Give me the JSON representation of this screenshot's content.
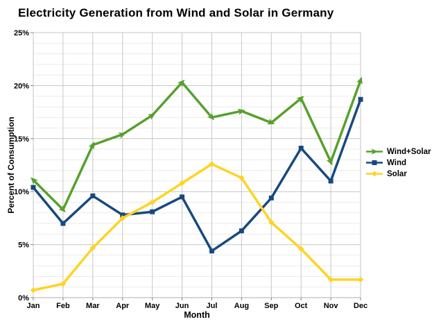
{
  "page": {
    "background": "#FFFFFF"
  },
  "chart_data": {
    "type": "line",
    "title": "Electricity Generation from Wind and Solar in Germany",
    "xlabel": "Month",
    "ylabel": "Percent of Consumption",
    "categories": [
      "Jan",
      "Feb",
      "Mar",
      "Apr",
      "May",
      "Jun",
      "Jul",
      "Aug",
      "Sep",
      "Oct",
      "Nov",
      "Dec"
    ],
    "ylim": [
      0,
      25
    ],
    "ytick_major_values": [
      0,
      5,
      10,
      15,
      20,
      25
    ],
    "ytick_labels": [
      "0%",
      "5%",
      "10%",
      "15%",
      "20%",
      "25%"
    ],
    "minor_grid_step_percent": 1,
    "grid": true,
    "legend_position": "right",
    "colors": {
      "grid_minor": "#EBEBEB",
      "grid_major": "#C6C6C6",
      "axis_line": "#ADADAD",
      "tick": "#808080",
      "text": "#000000",
      "background": "#FFFFFF"
    },
    "series": [
      {
        "name": "Wind+Solar",
        "color": "#57A02C",
        "marker": "arrow",
        "values": [
          11.1,
          8.3,
          14.4,
          15.4,
          17.2,
          20.3,
          17.0,
          17.6,
          16.5,
          18.8,
          12.8,
          20.5
        ]
      },
      {
        "name": "Wind",
        "color": "#17497F",
        "marker": "square",
        "values": [
          10.4,
          7.0,
          9.6,
          7.8,
          8.1,
          9.5,
          4.4,
          6.3,
          9.4,
          14.1,
          11.0,
          18.7
        ]
      },
      {
        "name": "Solar",
        "color": "#FFD322",
        "marker": "diamond",
        "values": [
          0.7,
          1.3,
          4.7,
          7.5,
          9.0,
          10.8,
          12.6,
          11.3,
          7.1,
          4.6,
          1.7,
          1.7
        ]
      }
    ]
  }
}
